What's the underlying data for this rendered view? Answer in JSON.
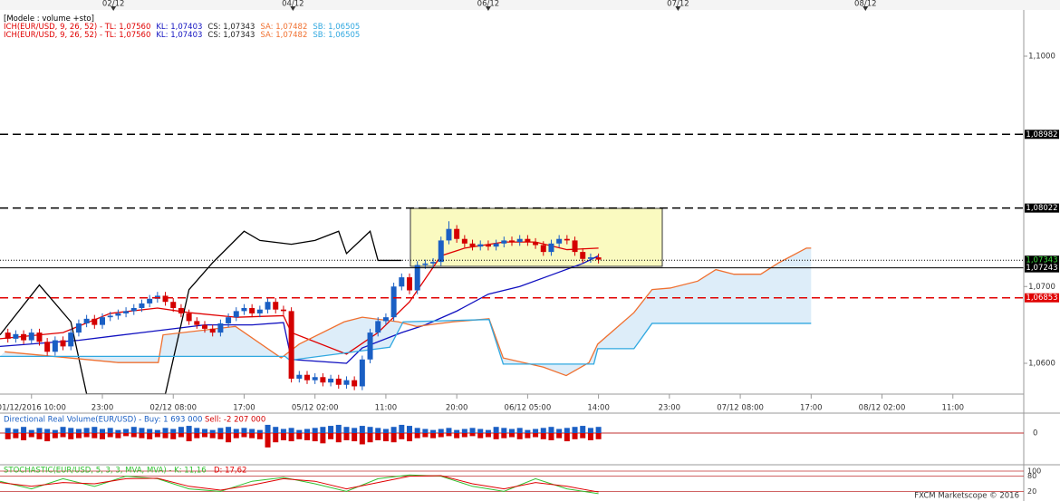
{
  "header": {
    "title": "[Modele : volume +sto]",
    "rows": [
      [
        {
          "text": "ICH(EUR/USD, 9, 26, 52) - TL: 1,07560",
          "color": "#e00000"
        },
        {
          "text": "KL: 1,07403",
          "color": "#1010c0"
        },
        {
          "text": "CS: 1,07343",
          "color": "#222222"
        },
        {
          "text": "SA: 1,07482",
          "color": "#f07030"
        },
        {
          "text": "SB: 1,06505",
          "color": "#30a8e0"
        }
      ],
      [
        {
          "text": "ICH(EUR/USD, 9, 26, 52) - TL: 1,07560",
          "color": "#e00000"
        },
        {
          "text": "KL: 1,07403",
          "color": "#1010c0"
        },
        {
          "text": "CS: 1,07343",
          "color": "#222222"
        },
        {
          "text": "SA: 1,07482",
          "color": "#f07030"
        },
        {
          "text": "SB: 1,06505",
          "color": "#30a8e0"
        }
      ]
    ]
  },
  "chart_data": [
    {
      "type": "candlestick",
      "up_color": "#1a5fc4",
      "down_color": "#d40000",
      "x": [
        -3,
        -2,
        -1,
        0,
        1,
        2,
        3,
        4,
        5,
        6,
        7,
        8,
        9,
        10,
        11,
        12,
        13,
        14,
        15,
        16,
        17,
        18,
        19,
        20,
        21,
        22,
        23,
        24,
        25,
        26,
        27,
        28,
        29,
        30,
        31,
        32,
        33,
        34,
        35,
        36,
        37,
        38,
        39,
        40,
        41,
        42,
        43,
        44,
        45,
        46,
        47,
        48,
        49,
        50,
        51,
        52,
        53,
        54,
        55,
        56,
        57,
        58,
        59,
        60,
        61,
        62,
        63,
        64,
        65,
        66,
        67,
        68,
        69,
        70,
        71,
        72
      ],
      "open": [
        1.064,
        1.0632,
        1.0638,
        1.063,
        1.064,
        1.0628,
        1.0615,
        1.063,
        1.0622,
        1.064,
        1.0652,
        1.0658,
        1.065,
        1.066,
        1.0662,
        1.0665,
        1.0668,
        1.0672,
        1.0678,
        1.0684,
        1.0688,
        1.068,
        1.0672,
        1.0665,
        1.0655,
        1.065,
        1.0645,
        1.064,
        1.0652,
        1.066,
        1.0668,
        1.0672,
        1.0665,
        1.067,
        1.068,
        1.067,
        1.0668,
        1.058,
        1.0585,
        1.0578,
        1.0582,
        1.0575,
        1.058,
        1.0572,
        1.0578,
        1.057,
        1.0605,
        1.064,
        1.0655,
        1.066,
        1.07,
        1.0712,
        1.0695,
        1.0728,
        1.073,
        1.0732,
        1.076,
        1.0775,
        1.0762,
        1.0756,
        1.0752,
        1.0755,
        1.0752,
        1.0756,
        1.076,
        1.0758,
        1.0762,
        1.0758,
        1.0754,
        1.0745,
        1.0756,
        1.0762,
        1.076,
        1.0745,
        1.0736,
        1.0738
      ],
      "high": [
        1.0645,
        1.0643,
        1.0643,
        1.0645,
        1.0645,
        1.0633,
        1.0635,
        1.0635,
        1.0645,
        1.0657,
        1.0663,
        1.0663,
        1.0665,
        1.0667,
        1.067,
        1.0673,
        1.0677,
        1.0683,
        1.0689,
        1.0693,
        1.0693,
        1.0685,
        1.0677,
        1.067,
        1.066,
        1.0655,
        1.065,
        1.0657,
        1.0665,
        1.0673,
        1.0677,
        1.0677,
        1.0675,
        1.0685,
        1.0685,
        1.0675,
        1.0673,
        1.059,
        1.059,
        1.0587,
        1.0587,
        1.0585,
        1.0585,
        1.0583,
        1.0583,
        1.061,
        1.0645,
        1.066,
        1.0665,
        1.0705,
        1.0717,
        1.0717,
        1.0733,
        1.0735,
        1.0737,
        1.0765,
        1.0785,
        1.078,
        1.0767,
        1.0761,
        1.076,
        1.076,
        1.0761,
        1.0765,
        1.0765,
        1.0767,
        1.0767,
        1.0763,
        1.0759,
        1.0761,
        1.0767,
        1.0767,
        1.0765,
        1.075,
        1.0743,
        1.0743
      ],
      "low": [
        1.0627,
        1.0627,
        1.0625,
        1.0625,
        1.0623,
        1.061,
        1.061,
        1.0617,
        1.0617,
        1.0635,
        1.0647,
        1.0645,
        1.0645,
        1.0655,
        1.0657,
        1.066,
        1.0663,
        1.0667,
        1.0673,
        1.0679,
        1.0675,
        1.0667,
        1.066,
        1.065,
        1.0645,
        1.064,
        1.0635,
        1.0635,
        1.0647,
        1.0655,
        1.0663,
        1.066,
        1.066,
        1.0665,
        1.0665,
        1.0663,
        1.0575,
        1.0575,
        1.0573,
        1.0573,
        1.057,
        1.057,
        1.0567,
        1.0567,
        1.0565,
        1.0565,
        1.06,
        1.0635,
        1.065,
        1.0655,
        1.0695,
        1.069,
        1.069,
        1.0723,
        1.0725,
        1.0727,
        1.0755,
        1.0757,
        1.0751,
        1.0747,
        1.0747,
        1.0747,
        1.0747,
        1.0751,
        1.0753,
        1.0753,
        1.0753,
        1.0749,
        1.074,
        1.074,
        1.0751,
        1.0755,
        1.074,
        1.0731,
        1.0731,
        1.073
      ],
      "close": [
        1.0632,
        1.0638,
        1.063,
        1.064,
        1.0628,
        1.0615,
        1.063,
        1.0622,
        1.064,
        1.0652,
        1.0658,
        1.065,
        1.066,
        1.0662,
        1.0665,
        1.0668,
        1.0672,
        1.0678,
        1.0684,
        1.0688,
        1.068,
        1.0672,
        1.0665,
        1.0655,
        1.065,
        1.0645,
        1.064,
        1.0652,
        1.066,
        1.0668,
        1.0672,
        1.0665,
        1.067,
        1.068,
        1.067,
        1.0668,
        1.058,
        1.0585,
        1.0578,
        1.0582,
        1.0575,
        1.058,
        1.0572,
        1.0578,
        1.057,
        1.0605,
        1.064,
        1.0655,
        1.066,
        1.07,
        1.0712,
        1.0695,
        1.0728,
        1.073,
        1.0732,
        1.076,
        1.0775,
        1.0762,
        1.0756,
        1.0752,
        1.0755,
        1.0752,
        1.0756,
        1.076,
        1.0758,
        1.0762,
        1.0758,
        1.0754,
        1.0745,
        1.0756,
        1.0762,
        1.076,
        1.0745,
        1.0736,
        1.0738,
        1.0735
      ],
      "lines": [
        {
          "color": "#e00000",
          "x": [
            -4,
            4,
            10,
            16,
            20,
            26,
            32,
            33,
            40,
            44,
            48,
            52,
            55,
            60,
            64,
            68,
            72
          ],
          "values": [
            1.0632,
            1.064,
            1.0665,
            1.0672,
            1.0666,
            1.066,
            1.0662,
            1.064,
            1.0612,
            1.064,
            1.068,
            1.074,
            1.075,
            1.0758,
            1.0758,
            1.0748,
            1.075
          ]
        },
        {
          "color": "#1010c0",
          "x": [
            -4,
            6,
            14,
            22,
            28,
            32,
            33,
            40,
            42,
            47,
            50,
            54,
            58,
            62,
            66,
            70,
            72
          ],
          "values": [
            1.0622,
            1.063,
            1.064,
            1.065,
            1.065,
            1.0653,
            1.0605,
            1.06,
            1.062,
            1.064,
            1.065,
            1.0668,
            1.069,
            1.07,
            1.0715,
            1.073,
            1.074
          ]
        },
        {
          "color": "#000000",
          "x": [
            -4,
            1,
            5,
            7,
            17,
            20,
            23,
            27,
            29,
            33,
            36,
            39,
            40,
            43,
            44,
            47
          ],
          "values": [
            1.0637,
            1.0702,
            1.0654,
            1.056,
            1.056,
            1.0696,
            1.0731,
            1.0772,
            1.076,
            1.0755,
            1.076,
            1.0772,
            1.0743,
            1.0772,
            1.0734,
            1.0734
          ]
        },
        {
          "color": "#f07030",
          "x": [
            -3.4,
            11,
            16.1,
            16.7,
            25.9,
            31.7,
            34,
            39.7,
            42,
            46.6,
            48.9,
            53.5,
            58.1,
            59.9,
            65,
            67.9,
            70.8,
            71.9,
            76.5,
            78.8,
            81.1,
            84.6,
            86.9,
            89.2,
            92.6,
            94.9,
            98.4,
            99
          ],
          "values": [
            1.0615,
            1.0601,
            1.0601,
            1.0637,
            1.0648,
            1.0607,
            1.0625,
            1.0654,
            1.066,
            1.0654,
            1.0648,
            1.0654,
            1.0658,
            1.0607,
            1.0595,
            1.0584,
            1.0601,
            1.0625,
            1.0666,
            1.0696,
            1.0698,
            1.0707,
            1.0722,
            1.0716,
            1.0716,
            1.0731,
            1.075,
            1.075
          ]
        },
        {
          "color": "#30a8e0",
          "x": [
            -4,
            32.2,
            32.8,
            45.5,
            47.2,
            58.1,
            59.9,
            71.4,
            71.9,
            76.5,
            78.8,
            99
          ],
          "values": [
            1.0609,
            1.0609,
            1.0604,
            1.0621,
            1.0654,
            1.0657,
            1.0599,
            1.0599,
            1.0619,
            1.0619,
            1.0652,
            1.0652
          ]
        }
      ],
      "cloud": true,
      "cloud_color": "#d4e8f8",
      "xlim": [
        -4,
        126
      ],
      "ylim": [
        1.05599,
        1.1059
      ],
      "yticks": [
        {
          "value": 1.1,
          "label": "1,1000"
        },
        {
          "value": 1.07,
          "label": "1,0700"
        },
        {
          "value": 1.06,
          "label": "1,0600"
        }
      ],
      "xticks": [
        {
          "value": 0,
          "label": "01/12/2016 10:00"
        },
        {
          "value": 9,
          "label": "23:00"
        },
        {
          "value": 18,
          "label": "02/12 08:00"
        },
        {
          "value": 27,
          "label": "17:00"
        },
        {
          "value": 36,
          "label": "05/12 02:00"
        },
        {
          "value": 45,
          "label": "11:00"
        },
        {
          "value": 54,
          "label": "20:00"
        },
        {
          "value": 63,
          "label": "06/12 05:00"
        },
        {
          "value": 72,
          "label": "14:00"
        },
        {
          "value": 81,
          "label": "23:00"
        },
        {
          "value": 90,
          "label": "07/12 08:00"
        },
        {
          "value": 99,
          "label": "17:00"
        },
        {
          "value": 108,
          "label": "08/12 02:00"
        },
        {
          "value": 117,
          "label": "11:00"
        }
      ],
      "date_markers": [
        {
          "value": 10.4,
          "label": "02/12"
        },
        {
          "value": 33.2,
          "label": "04/12"
        },
        {
          "value": 58,
          "label": "06/12"
        },
        {
          "value": 82.1,
          "label": "07/12"
        },
        {
          "value": 105.9,
          "label": "08/12"
        }
      ],
      "levels": [
        {
          "value": 1.08982,
          "label": "1,08982",
          "color": "#000000",
          "label_color": "#ffffff",
          "style": "dashed"
        },
        {
          "value": 1.08022,
          "label": "1,08022",
          "color": "#000000",
          "label_color": "#ffffff",
          "style": "dashed"
        },
        {
          "value": 1.07343,
          "label": "1,07343",
          "color": "#000000",
          "label_color": "#40e040",
          "style": "dotted"
        },
        {
          "value": 1.07243,
          "label": "1,07243",
          "color": "#000000",
          "label_color": "#ffffff",
          "style": "solid"
        },
        {
          "value": 1.06853,
          "label": "1,06853",
          "color": "#e00000",
          "label_color": "#ffffff",
          "style": "dashed"
        }
      ]
    },
    {
      "type": "bar",
      "title": "Directional Real Volume(EUR/USD) -  Buy: 1 693 000",
      "title2": "Sell: -2 207 000",
      "series": [
        {
          "color": "#1a5fc4",
          "values": [
            5,
            4,
            6,
            3,
            5,
            4,
            3,
            6,
            5,
            4,
            5,
            6,
            4,
            5,
            3,
            4,
            6,
            5,
            4,
            3,
            5,
            4,
            6,
            7,
            5,
            4,
            3,
            5,
            6,
            4,
            5,
            4,
            3,
            8,
            6,
            4,
            5,
            3,
            4,
            5,
            6,
            7,
            8,
            6,
            5,
            7,
            6,
            5,
            4,
            6,
            8,
            7,
            5,
            4,
            3,
            4,
            5,
            3,
            4,
            5,
            4,
            3,
            6,
            5,
            4,
            5,
            3,
            4,
            5,
            6,
            4,
            5,
            6,
            7,
            5,
            6
          ]
        },
        {
          "color": "#d40000",
          "values": [
            -6,
            -5,
            -7,
            -4,
            -6,
            -8,
            -5,
            -4,
            -6,
            -5,
            -4,
            -5,
            -6,
            -4,
            -5,
            -3,
            -4,
            -5,
            -6,
            -4,
            -5,
            -6,
            -4,
            -8,
            -5,
            -4,
            -5,
            -6,
            -9,
            -5,
            -4,
            -5,
            -6,
            -14,
            -9,
            -7,
            -8,
            -6,
            -7,
            -8,
            -10,
            -6,
            -9,
            -7,
            -8,
            -11,
            -9,
            -7,
            -8,
            -9,
            -6,
            -8,
            -5,
            -4,
            -5,
            -4,
            -3,
            -5,
            -4,
            -3,
            -5,
            -4,
            -6,
            -5,
            -4,
            -6,
            -5,
            -4,
            -6,
            -7,
            -5,
            -8,
            -6,
            -5,
            -7,
            -6
          ]
        }
      ],
      "ylim": [
        -15,
        15
      ],
      "yticks": [
        0
      ]
    },
    {
      "type": "line",
      "title": "STOCHASTIC(EUR/USD, 5, 3, 3, MVA, MVA) - K: 11,16",
      "title2": "D: 17,62",
      "series": [
        {
          "color": "#30c030",
          "x": [
            -4,
            0,
            4,
            8,
            12,
            16,
            20,
            24,
            28,
            32,
            36,
            40,
            44,
            48,
            52,
            56,
            60,
            64,
            68,
            72
          ],
          "values": [
            60,
            30,
            70,
            40,
            80,
            70,
            30,
            20,
            60,
            75,
            50,
            20,
            70,
            85,
            80,
            40,
            20,
            70,
            30,
            11.16
          ]
        },
        {
          "color": "#e00000",
          "x": [
            -4,
            0,
            4,
            8,
            12,
            16,
            20,
            24,
            28,
            32,
            36,
            40,
            44,
            48,
            52,
            56,
            60,
            64,
            68,
            72
          ],
          "values": [
            55,
            40,
            55,
            50,
            70,
            72,
            40,
            25,
            45,
            70,
            60,
            30,
            55,
            80,
            82,
            50,
            30,
            55,
            40,
            17.62
          ]
        }
      ],
      "ylim": [
        0,
        100
      ],
      "yticks": [
        20,
        80,
        100
      ]
    }
  ],
  "footer": "FXCM Marketscope © 2016"
}
